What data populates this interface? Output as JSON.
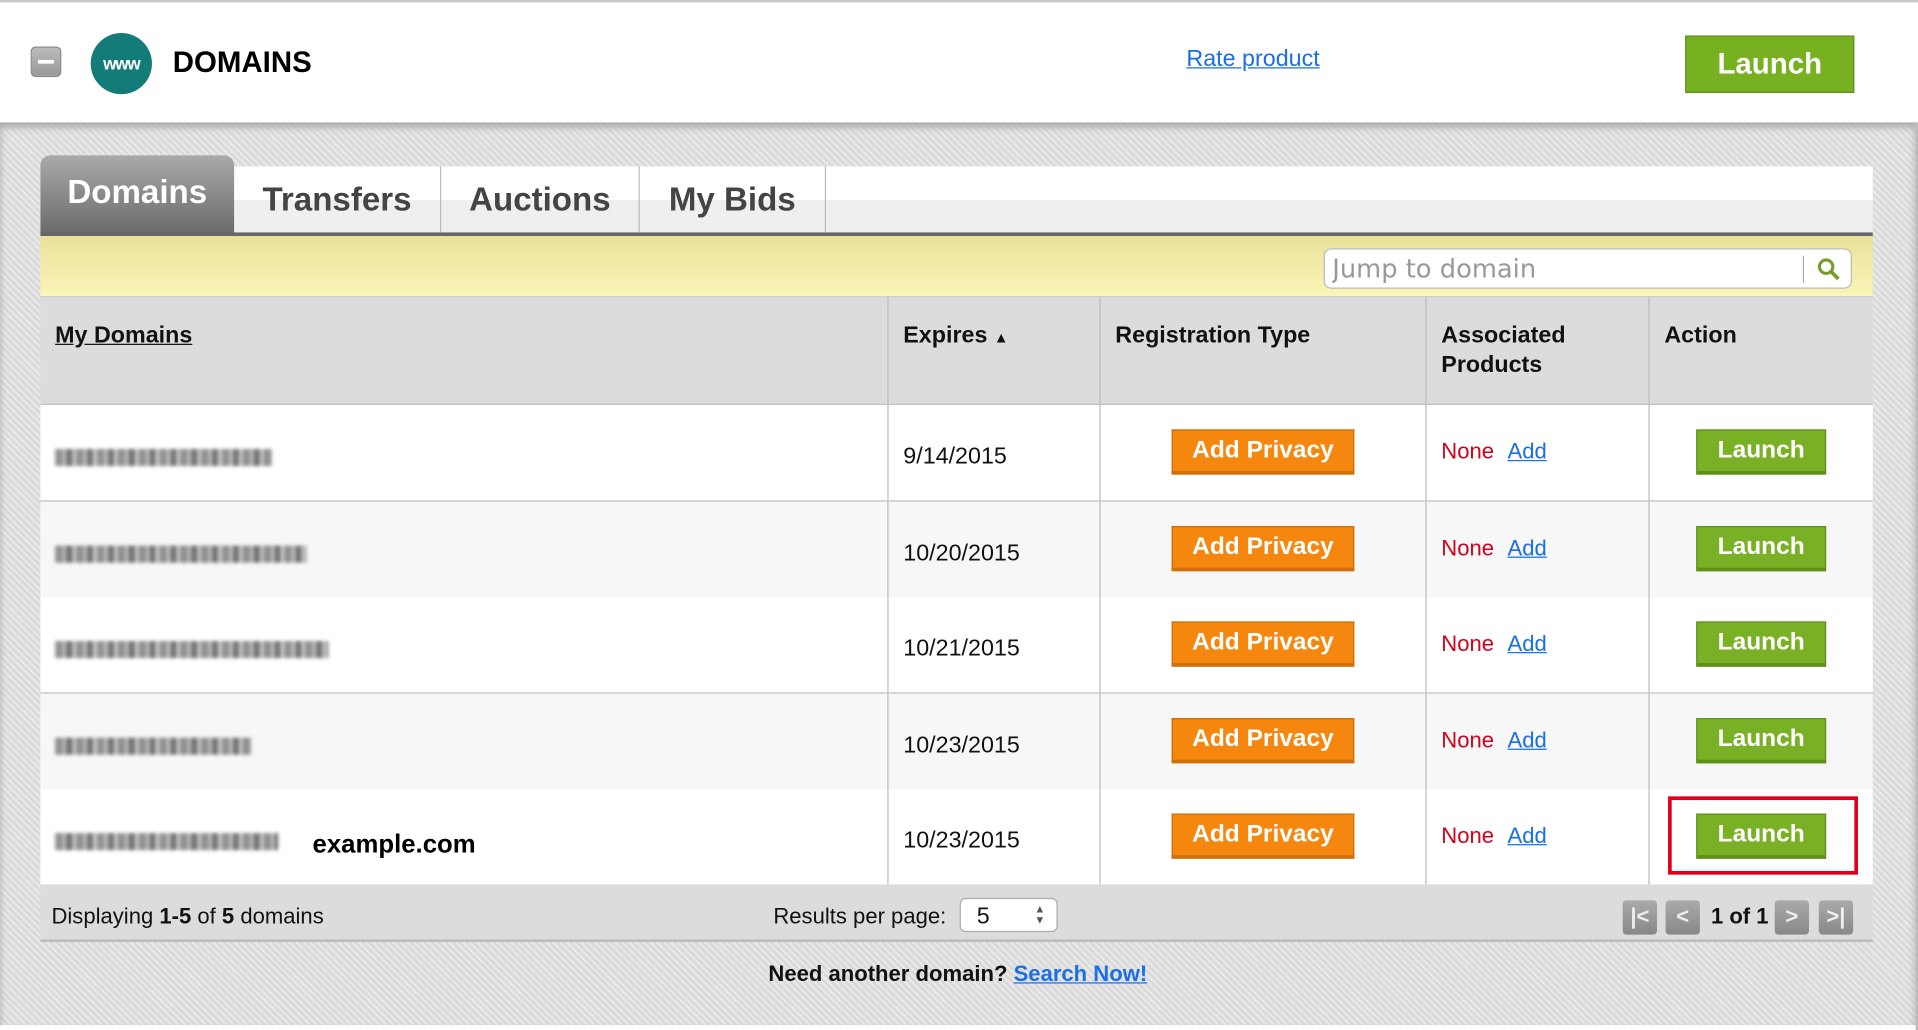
{
  "header": {
    "title": "DOMAINS",
    "logo_text": "www",
    "rate_link": "Rate product",
    "launch_label": "Launch"
  },
  "tabs": [
    {
      "label": "Domains",
      "active": true
    },
    {
      "label": "Transfers"
    },
    {
      "label": "Auctions"
    },
    {
      "label": "My Bids"
    }
  ],
  "search": {
    "placeholder": "Jump to domain"
  },
  "table": {
    "columns": [
      "My Domains",
      "Expires",
      "Registration Type",
      "Associated Products",
      "Action"
    ],
    "sort_indicator": "▲",
    "rows": [
      {
        "extra": "",
        "expires": "9/14/2015",
        "registration": "Add Privacy",
        "products": "None",
        "add": "Add",
        "action": "Launch"
      },
      {
        "extra": "",
        "expires": "10/20/2015",
        "registration": "Add Privacy",
        "products": "None",
        "add": "Add",
        "action": "Launch"
      },
      {
        "extra": "",
        "expires": "10/21/2015",
        "registration": "Add Privacy",
        "products": "None",
        "add": "Add",
        "action": "Launch"
      },
      {
        "extra": "",
        "expires": "10/23/2015",
        "registration": "Add Privacy",
        "products": "None",
        "add": "Add",
        "action": "Launch"
      },
      {
        "extra": "example.com",
        "expires": "10/23/2015",
        "registration": "Add Privacy",
        "products": "None",
        "add": "Add",
        "action": "Launch",
        "highlighted": true
      }
    ]
  },
  "footer": {
    "displaying_prefix": "Displaying ",
    "range": "1-5",
    "of": " of ",
    "total": "5",
    "suffix": " domains",
    "results_label": "Results per page:",
    "per_page": "5",
    "page_info": "1 of 1"
  },
  "bottom": {
    "question": "Need another domain? ",
    "link": "Search Now!"
  },
  "colors": {
    "launch_green": "#7ab026",
    "privacy_orange": "#f5870f",
    "highlight_red": "#e0001b",
    "link_blue": "#1a6ee6"
  }
}
